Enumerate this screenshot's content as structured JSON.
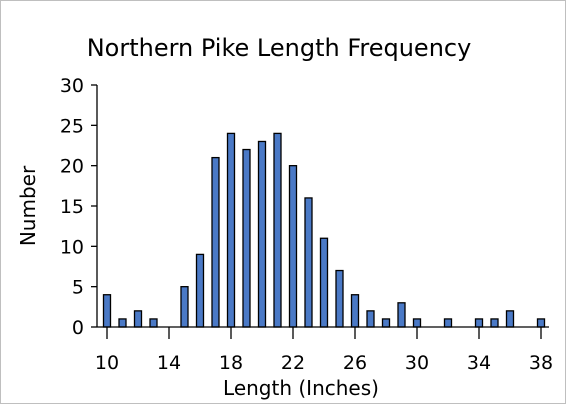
{
  "chart_data": {
    "type": "bar",
    "title": "Northern Pike Length Frequency",
    "xlabel": "Length (Inches)",
    "ylabel": "Number",
    "x": [
      10,
      11,
      12,
      13,
      14,
      15,
      16,
      17,
      18,
      19,
      20,
      21,
      22,
      23,
      24,
      25,
      26,
      27,
      28,
      29,
      30,
      31,
      32,
      33,
      34,
      35,
      36,
      37,
      38
    ],
    "values": [
      4,
      1,
      2,
      1,
      0,
      5,
      9,
      21,
      24,
      22,
      23,
      24,
      20,
      16,
      11,
      7,
      4,
      2,
      1,
      3,
      1,
      0,
      1,
      0,
      1,
      1,
      2,
      0,
      1
    ],
    "xticks": [
      10,
      14,
      18,
      22,
      26,
      30,
      34,
      38
    ],
    "yticks": [
      0,
      5,
      10,
      15,
      20,
      25,
      30
    ],
    "xlim": [
      10,
      38
    ],
    "ylim": [
      0,
      30
    ],
    "grid": false,
    "colors": {
      "bar": "#4a79c6",
      "bar_edge": "#000000"
    }
  }
}
